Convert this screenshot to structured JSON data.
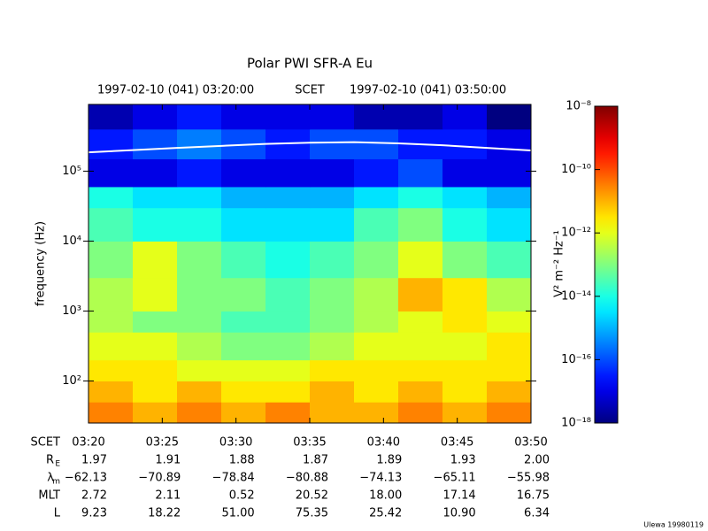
{
  "chart_data": {
    "type": "spectrogram",
    "title": "Polar PWI SFR-A Eu",
    "header": {
      "start": "1997-02-10 (041) 03:20:00",
      "center": "SCET",
      "end": "1997-02-10 (041) 03:50:00"
    },
    "ylabel": "frequency (Hz)",
    "ylog": true,
    "ylim": [
      25,
      900000
    ],
    "yticks": [
      {
        "value": 100,
        "label": "10²"
      },
      {
        "value": 1000,
        "label": "10³"
      },
      {
        "value": 10000,
        "label": "10⁴"
      },
      {
        "value": 100000,
        "label": "10⁵"
      }
    ],
    "freq_edges": [
      25,
      50,
      100,
      200,
      500,
      1000,
      3000,
      10000,
      30000,
      60000,
      150000,
      400000,
      900000
    ],
    "z": [
      [
        3e-11,
        1e-11,
        3e-11,
        1e-11,
        3e-11,
        1e-11,
        1e-11,
        3e-11,
        1e-11,
        3e-11
      ],
      [
        1e-11,
        3e-12,
        1e-11,
        3e-12,
        3e-12,
        1e-11,
        3e-12,
        1e-11,
        3e-12,
        1e-11
      ],
      [
        3e-12,
        3e-12,
        1e-12,
        1e-12,
        1e-12,
        3e-12,
        3e-12,
        3e-12,
        3e-12,
        3e-12
      ],
      [
        1e-12,
        1e-12,
        3e-13,
        1e-13,
        1e-13,
        3e-13,
        1e-12,
        1e-12,
        1e-12,
        3e-12
      ],
      [
        3e-13,
        1e-13,
        1e-13,
        3e-14,
        3e-14,
        1e-13,
        3e-13,
        1e-12,
        3e-12,
        1e-12
      ],
      [
        3e-13,
        1e-12,
        1e-13,
        1e-13,
        3e-14,
        1e-13,
        3e-13,
        1e-11,
        3e-12,
        3e-13
      ],
      [
        1e-13,
        1e-12,
        1e-13,
        3e-14,
        1e-14,
        3e-14,
        1e-13,
        1e-12,
        1e-13,
        3e-14
      ],
      [
        3e-14,
        1e-14,
        1e-14,
        3e-15,
        3e-15,
        3e-15,
        3e-14,
        1e-13,
        1e-14,
        3e-15
      ],
      [
        1e-14,
        3e-15,
        3e-15,
        1e-15,
        1e-15,
        1e-15,
        3e-15,
        1e-14,
        3e-15,
        1e-15
      ],
      [
        1e-17,
        1e-17,
        3e-17,
        1e-17,
        1e-17,
        1e-17,
        3e-17,
        1e-16,
        1e-17,
        1e-17
      ],
      [
        3e-17,
        1e-16,
        3e-16,
        1e-16,
        3e-17,
        1e-16,
        1e-16,
        3e-17,
        3e-17,
        1e-17
      ],
      [
        3e-18,
        1e-17,
        3e-17,
        1e-17,
        1e-17,
        1e-17,
        3e-18,
        3e-18,
        1e-17,
        1e-18
      ]
    ],
    "overlay_line": {
      "color": "#ffffff",
      "values": [
        186000,
        200000,
        215000,
        230000,
        245000,
        255000,
        260000,
        250000,
        235000,
        215000,
        198000
      ]
    },
    "colorbar": {
      "label": "V² m⁻² Hz⁻¹",
      "log": true,
      "lim": [
        1e-18,
        1e-08
      ],
      "ticks": [
        {
          "value": 1e-08,
          "label": "10⁻⁸"
        },
        {
          "value": 1e-10,
          "label": "10⁻¹⁰"
        },
        {
          "value": 1e-12,
          "label": "10⁻¹²"
        },
        {
          "value": 1e-14,
          "label": "10⁻¹⁴"
        },
        {
          "value": 1e-16,
          "label": "10⁻¹⁶"
        },
        {
          "value": 1e-18,
          "label": "10⁻¹⁸"
        }
      ]
    },
    "ephemeris": [
      {
        "label": "SCET",
        "values": [
          "03:20",
          "03:25",
          "03:30",
          "03:35",
          "03:40",
          "03:45",
          "03:50"
        ]
      },
      {
        "label": "R",
        "sub": "E",
        "values": [
          "1.97",
          "1.91",
          "1.88",
          "1.87",
          "1.89",
          "1.93",
          "2.00"
        ]
      },
      {
        "label": "λ",
        "sub": "m",
        "values": [
          "−62.13",
          "−70.89",
          "−78.84",
          "−80.88",
          "−74.13",
          "−65.11",
          "−55.98"
        ]
      },
      {
        "label": "MLT",
        "values": [
          "2.72",
          "2.11",
          "0.52",
          "20.52",
          "18.00",
          "17.14",
          "16.75"
        ]
      },
      {
        "label": "L",
        "values": [
          "9.23",
          "18.22",
          "51.00",
          "75.35",
          "25.42",
          "10.90",
          "6.34"
        ]
      }
    ],
    "footer": "Ulewa 19980119"
  }
}
